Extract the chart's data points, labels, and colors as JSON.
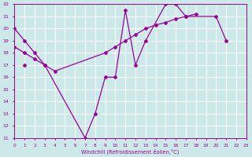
{
  "bg_color": "#cce8e8",
  "grid_color": "#ffffff",
  "line_color": "#990099",
  "xlim": [
    0,
    23
  ],
  "ylim": [
    11,
    22
  ],
  "xlabel": "Windchill (Refroidissement éolien,°C)",
  "xtick_labels": [
    "0",
    "1",
    "2",
    "3",
    "4",
    "5",
    "6",
    "7",
    "8",
    "9",
    "10",
    "11",
    "12",
    "13",
    "14",
    "15",
    "16",
    "17",
    "18",
    "19",
    "20",
    "21",
    "22",
    "23"
  ],
  "ytick_labels": [
    "11",
    "12",
    "13",
    "14",
    "15",
    "16",
    "17",
    "18",
    "19",
    "20",
    "21",
    "22"
  ],
  "series": [
    {
      "x": [
        0,
        1,
        2,
        3,
        7,
        8,
        9,
        10,
        11,
        12,
        13,
        15,
        16,
        17,
        20,
        21,
        22,
        23
      ],
      "y": [
        20,
        19,
        18,
        17,
        11,
        13,
        16,
        16,
        21.5,
        17,
        19,
        22,
        22,
        21,
        21,
        19,
        null,
        null
      ]
    },
    {
      "x": [
        0,
        1,
        2,
        3,
        4,
        9,
        10,
        11,
        12,
        13,
        14,
        15,
        16,
        17,
        18,
        19,
        20,
        21,
        22,
        23
      ],
      "y": [
        18.5,
        18,
        17.5,
        17,
        16.5,
        18,
        18.5,
        19,
        19.5,
        20,
        20.3,
        20.5,
        20.8,
        21,
        21.2,
        null,
        null,
        null,
        null,
        null
      ]
    },
    {
      "x": [
        1,
        2,
        3,
        4,
        5,
        6,
        7,
        8,
        9,
        10,
        11,
        12,
        13,
        14,
        15,
        16,
        17,
        18,
        19,
        20,
        21,
        22,
        23
      ],
      "y": [
        17,
        null,
        null,
        null,
        null,
        null,
        null,
        null,
        null,
        null,
        null,
        null,
        null,
        null,
        null,
        null,
        null,
        null,
        null,
        null,
        null,
        null,
        null
      ]
    }
  ]
}
